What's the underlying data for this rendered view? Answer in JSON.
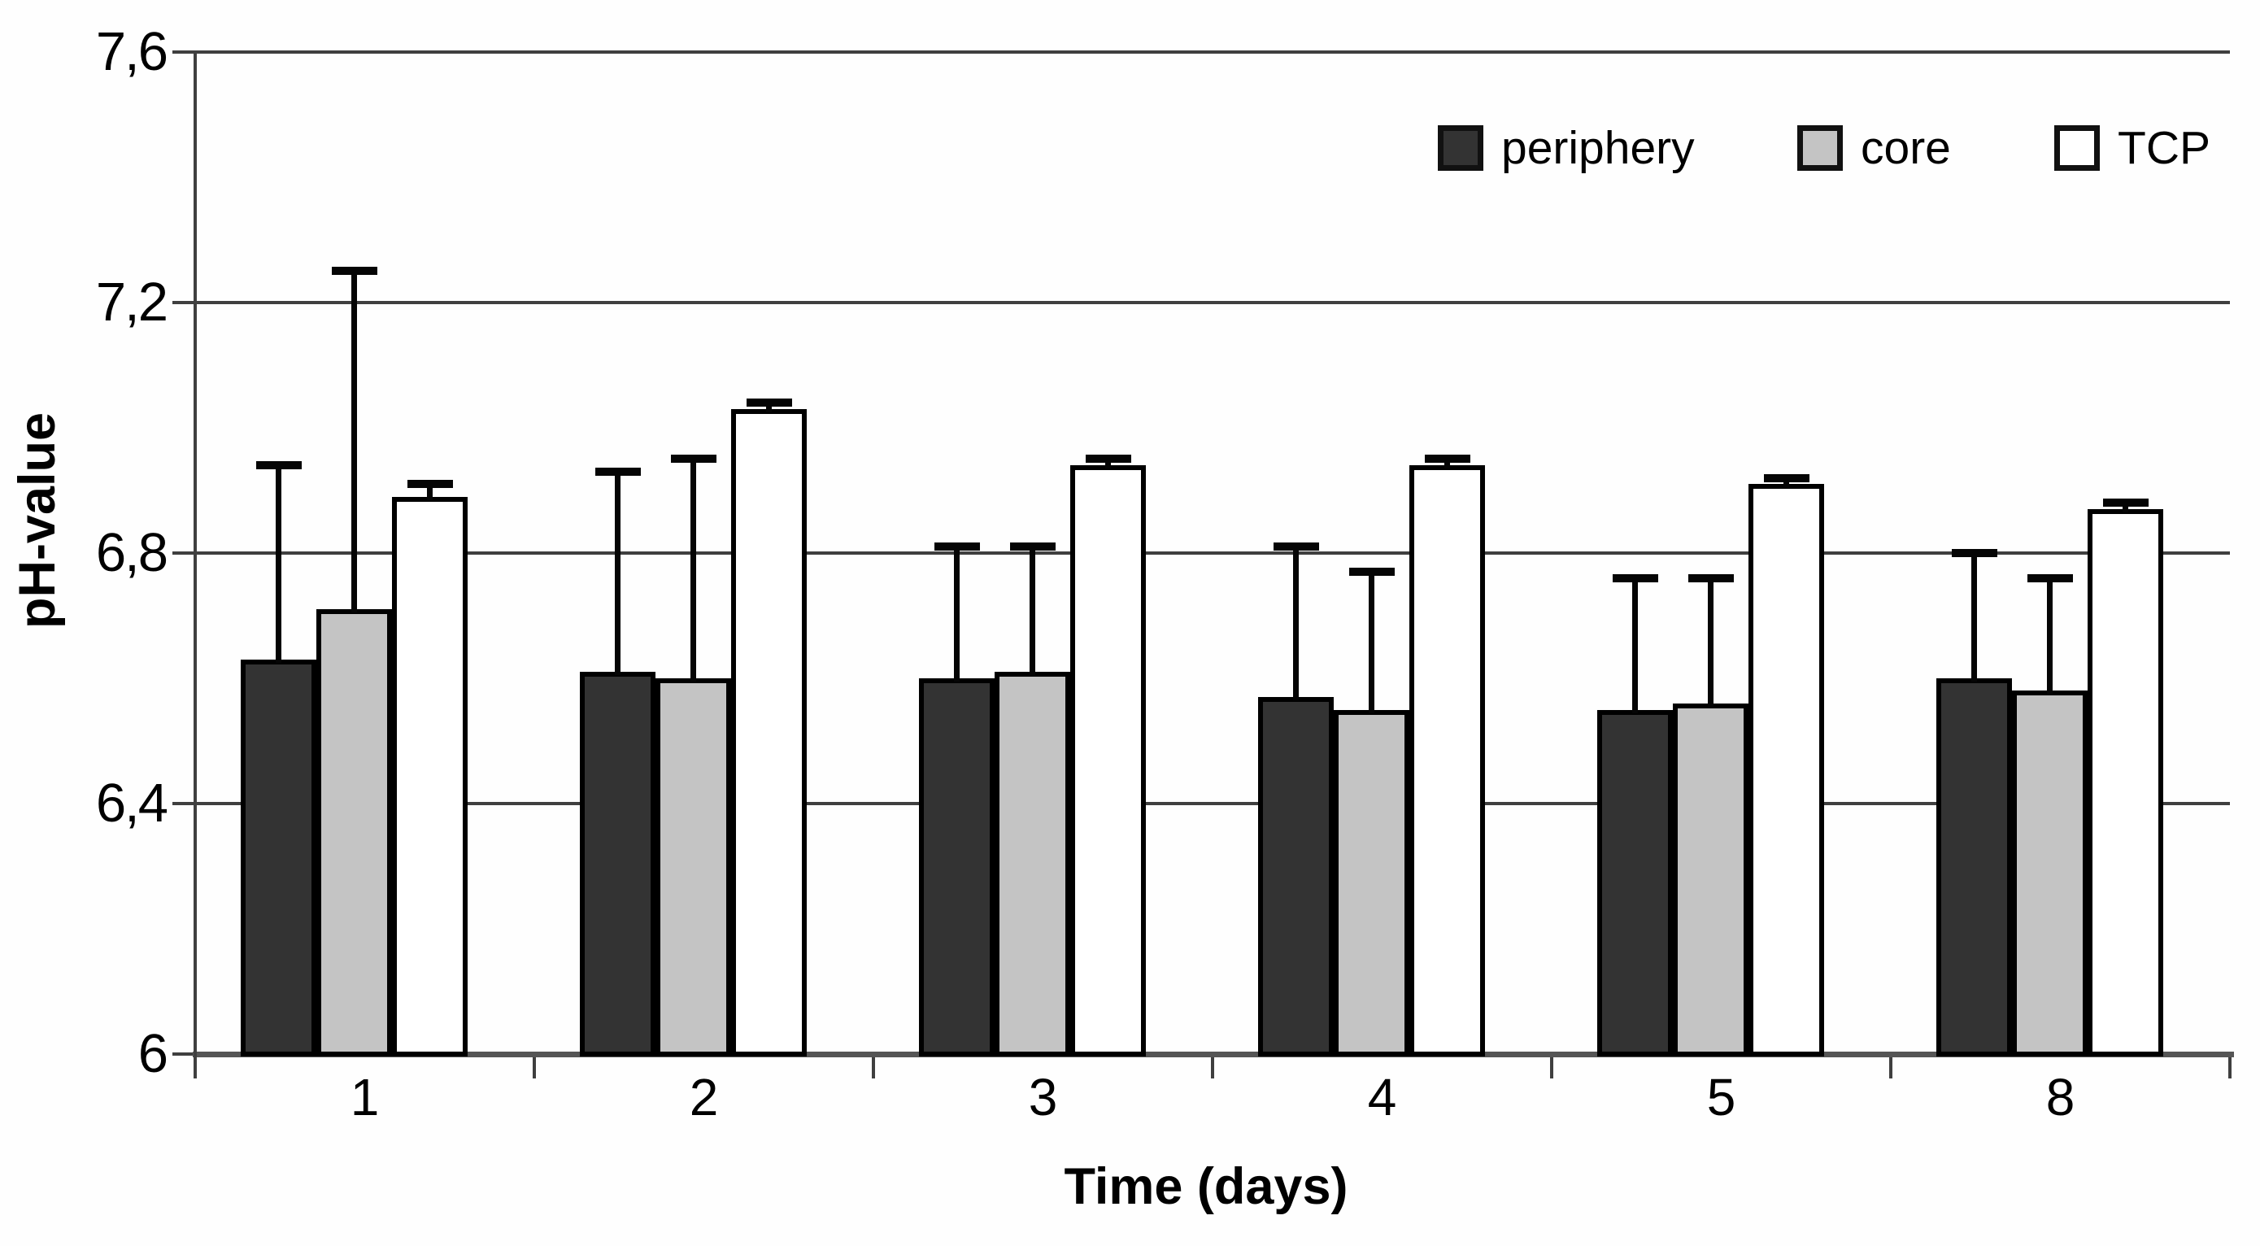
{
  "chart_data": {
    "type": "bar",
    "ylabel": "pH-value",
    "xlabel": "Time (days)",
    "categories": [
      "1",
      "2",
      "3",
      "4",
      "5",
      "8"
    ],
    "y_ticks": [
      "7,6",
      "7,2",
      "6,8",
      "6,4",
      "6"
    ],
    "y_tick_values": [
      7.6,
      7.2,
      6.8,
      6.4,
      6.0
    ],
    "ylim": [
      6.0,
      7.6
    ],
    "grid": "horizontal",
    "decimal_separator": "comma",
    "legend_position": "top-right",
    "error_bars": "upper-only",
    "colors": {
      "periphery": "#333333",
      "core": "#c4c4c4",
      "TCP": "#ffffff",
      "bar_border": "#000000",
      "gridline": "#3f3f3f"
    },
    "series": [
      {
        "name": "periphery",
        "color": "#333333",
        "values": [
          6.63,
          6.61,
          6.6,
          6.57,
          6.55,
          6.6
        ],
        "error_top": [
          6.94,
          6.93,
          6.81,
          6.81,
          6.76,
          6.8
        ]
      },
      {
        "name": "core",
        "color": "#c4c4c4",
        "values": [
          6.71,
          6.6,
          6.61,
          6.55,
          6.56,
          6.58
        ],
        "error_top": [
          7.25,
          6.95,
          6.81,
          6.77,
          6.76,
          6.76
        ]
      },
      {
        "name": "TCP",
        "color": "#ffffff",
        "values": [
          6.89,
          7.03,
          6.94,
          6.94,
          6.91,
          6.87
        ],
        "error_top": [
          6.91,
          7.04,
          6.95,
          6.95,
          6.92,
          6.88
        ]
      }
    ]
  }
}
